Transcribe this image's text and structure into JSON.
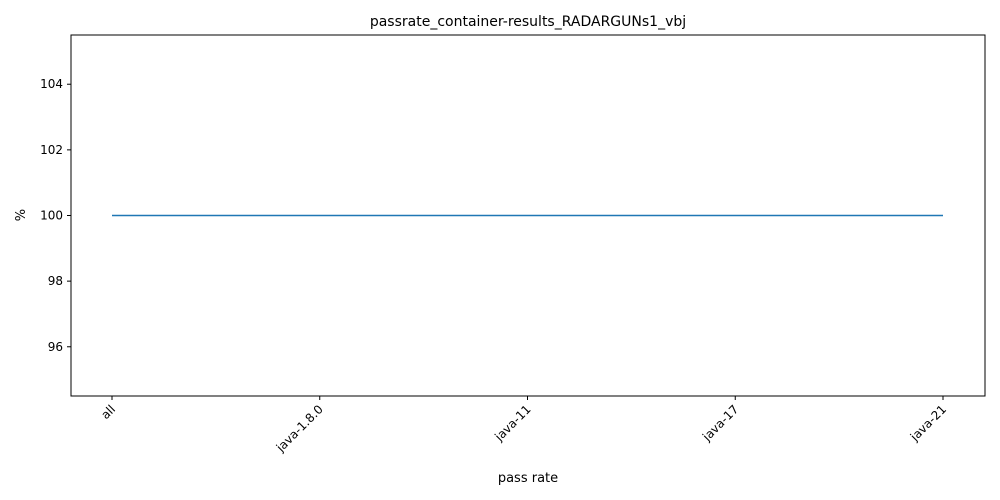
{
  "chart_data": {
    "type": "line",
    "title": "passrate_container-results_RADARGUNs1_vbj",
    "xlabel": "pass rate",
    "ylabel": "%",
    "categories": [
      "all",
      "java-1.8.0",
      "java-11",
      "java-17",
      "java-21"
    ],
    "series": [
      {
        "values": [
          100,
          100,
          100,
          100,
          100
        ],
        "color": "#1f77b4"
      }
    ],
    "ylim": [
      94.5,
      105.5
    ],
    "yticks": [
      96,
      98,
      100,
      102,
      104
    ],
    "grid": false,
    "legend": "none"
  }
}
